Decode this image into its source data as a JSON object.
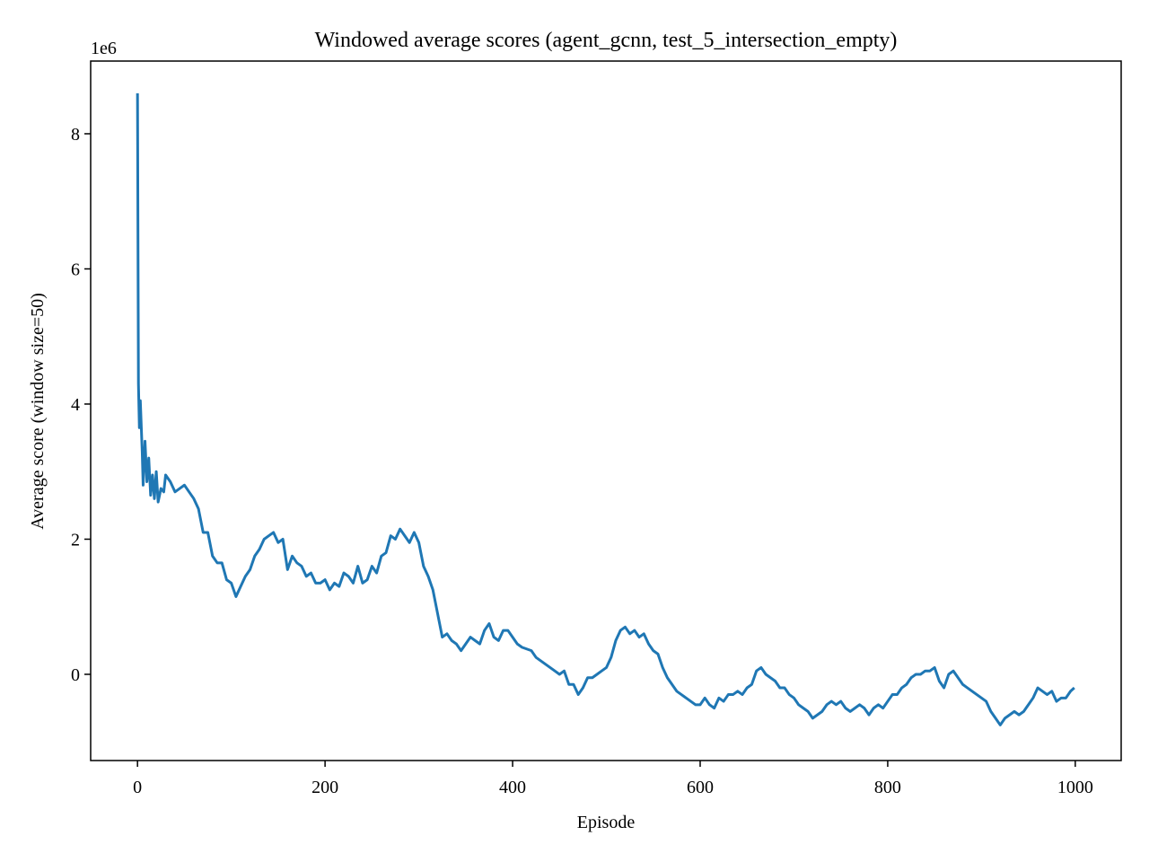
{
  "chart_data": {
    "type": "line",
    "title": "Windowed average scores (agent_gcnn, test_5_intersection_empty)",
    "x_label": "Episode",
    "y_label": "Average score (window size=50)",
    "y_offset_label": "1e6",
    "color": "#1f77b4",
    "x": [
      0,
      1,
      2,
      3,
      5,
      6,
      8,
      10,
      12,
      14,
      16,
      18,
      20,
      22,
      25,
      28,
      30,
      35,
      40,
      45,
      50,
      55,
      60,
      65,
      70,
      75,
      80,
      85,
      90,
      95,
      100,
      105,
      110,
      115,
      120,
      125,
      130,
      135,
      140,
      145,
      150,
      155,
      160,
      165,
      170,
      175,
      180,
      185,
      190,
      195,
      200,
      205,
      210,
      215,
      220,
      225,
      230,
      235,
      240,
      245,
      250,
      255,
      260,
      265,
      270,
      275,
      280,
      285,
      290,
      295,
      300,
      305,
      310,
      315,
      320,
      325,
      330,
      335,
      340,
      345,
      350,
      355,
      360,
      365,
      370,
      375,
      380,
      385,
      390,
      395,
      400,
      405,
      410,
      420,
      425,
      430,
      435,
      440,
      445,
      450,
      455,
      460,
      465,
      470,
      475,
      480,
      485,
      490,
      495,
      500,
      505,
      510,
      515,
      520,
      525,
      530,
      535,
      540,
      545,
      550,
      555,
      560,
      565,
      570,
      575,
      580,
      585,
      590,
      595,
      600,
      605,
      610,
      615,
      620,
      625,
      630,
      635,
      640,
      645,
      650,
      655,
      660,
      665,
      670,
      675,
      680,
      685,
      690,
      695,
      700,
      705,
      710,
      715,
      720,
      725,
      730,
      735,
      740,
      745,
      750,
      755,
      760,
      765,
      770,
      775,
      780,
      785,
      790,
      795,
      800,
      805,
      810,
      815,
      820,
      825,
      830,
      835,
      840,
      845,
      850,
      855,
      860,
      865,
      870,
      875,
      880,
      885,
      890,
      895,
      900,
      905,
      910,
      915,
      920,
      925,
      930,
      935,
      940,
      945,
      950,
      955,
      960,
      965,
      970,
      975,
      980,
      985,
      990,
      995,
      999
    ],
    "values": [
      8.6,
      4.3,
      3.65,
      4.05,
      3.3,
      2.8,
      3.45,
      2.85,
      3.2,
      2.65,
      2.95,
      2.6,
      3.0,
      2.55,
      2.75,
      2.7,
      2.95,
      2.85,
      2.7,
      2.75,
      2.8,
      2.7,
      2.6,
      2.45,
      2.1,
      2.1,
      1.75,
      1.65,
      1.65,
      1.4,
      1.35,
      1.15,
      1.3,
      1.45,
      1.55,
      1.75,
      1.85,
      2.0,
      2.05,
      2.1,
      1.95,
      2.0,
      1.55,
      1.75,
      1.65,
      1.6,
      1.45,
      1.5,
      1.35,
      1.35,
      1.4,
      1.25,
      1.35,
      1.3,
      1.5,
      1.45,
      1.35,
      1.6,
      1.35,
      1.4,
      1.6,
      1.5,
      1.75,
      1.8,
      2.05,
      2.0,
      2.15,
      2.05,
      1.95,
      2.1,
      1.95,
      1.6,
      1.45,
      1.25,
      0.9,
      0.55,
      0.6,
      0.5,
      0.45,
      0.35,
      0.45,
      0.55,
      0.5,
      0.45,
      0.65,
      0.75,
      0.55,
      0.5,
      0.65,
      0.65,
      0.55,
      0.45,
      0.4,
      0.35,
      0.25,
      0.2,
      0.15,
      0.1,
      0.05,
      0.0,
      0.05,
      -0.15,
      -0.15,
      -0.3,
      -0.2,
      -0.05,
      -0.05,
      0.0,
      0.05,
      0.1,
      0.25,
      0.5,
      0.65,
      0.7,
      0.6,
      0.65,
      0.55,
      0.6,
      0.45,
      0.35,
      0.3,
      0.1,
      -0.05,
      -0.15,
      -0.25,
      -0.3,
      -0.35,
      -0.4,
      -0.45,
      -0.45,
      -0.35,
      -0.45,
      -0.5,
      -0.35,
      -0.4,
      -0.3,
      -0.3,
      -0.25,
      -0.3,
      -0.2,
      -0.15,
      0.05,
      0.1,
      0.0,
      -0.05,
      -0.1,
      -0.2,
      -0.2,
      -0.3,
      -0.35,
      -0.45,
      -0.5,
      -0.55,
      -0.65,
      -0.6,
      -0.55,
      -0.45,
      -0.4,
      -0.45,
      -0.4,
      -0.5,
      -0.55,
      -0.5,
      -0.45,
      -0.5,
      -0.6,
      -0.5,
      -0.45,
      -0.5,
      -0.4,
      -0.3,
      -0.3,
      -0.2,
      -0.15,
      -0.05,
      0.0,
      0.0,
      0.05,
      0.05,
      0.1,
      -0.1,
      -0.2,
      0.0,
      0.05,
      -0.05,
      -0.15,
      -0.2,
      -0.25,
      -0.3,
      -0.35,
      -0.4,
      -0.55,
      -0.65,
      -0.75,
      -0.65,
      -0.6,
      -0.55,
      -0.6,
      -0.55,
      -0.45,
      -0.35,
      -0.2,
      -0.25,
      -0.3,
      -0.25,
      -0.4,
      -0.35,
      -0.35,
      -0.25,
      -0.2
    ],
    "xlim": [
      -49.95,
      1048.95
    ],
    "ylim": [
      -1.276,
      9.076
    ],
    "xticks": [
      0,
      200,
      400,
      600,
      800,
      1000
    ],
    "yticks": [
      0,
      2,
      4,
      6,
      8
    ]
  }
}
